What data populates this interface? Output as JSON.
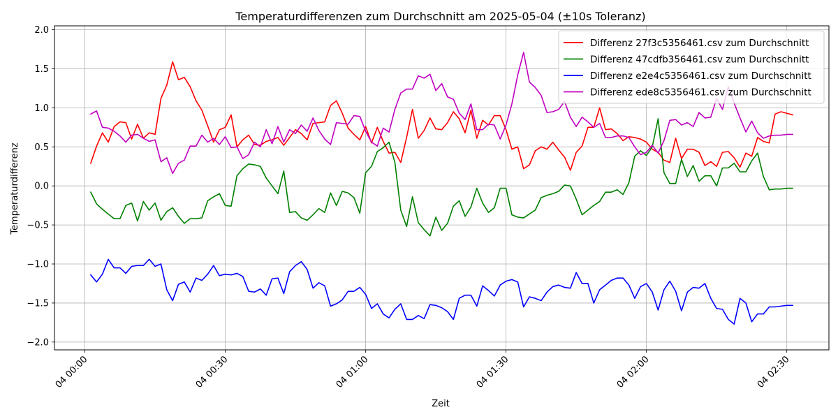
{
  "chart_data": {
    "type": "line",
    "title": "Temperaturdifferenzen zum Durchschnitt am 2025-05-04 (±10s Toleranz)",
    "xlabel": "Zeit",
    "ylabel": "Temperaturdifferenz",
    "xlim": [
      "2025-05-03T23:53:30",
      "2025-05-04T02:39:00"
    ],
    "ylim": [
      -2.1,
      2.05
    ],
    "yticks": [
      -2.0,
      -1.5,
      -1.0,
      -0.5,
      0.0,
      0.5,
      1.0,
      1.5,
      2.0
    ],
    "ytick_labels": [
      "−2.0",
      "−1.5",
      "−1.0",
      "−0.5",
      "0.0",
      "0.5",
      "1.0",
      "1.5",
      "2.0"
    ],
    "xticks": [
      "2025-05-04T00:00:00",
      "2025-05-04T00:30:00",
      "2025-05-04T01:00:00",
      "2025-05-04T01:30:00",
      "2025-05-04T02:00:00",
      "2025-05-04T02:30:00"
    ],
    "xtick_labels": [
      "04 00:00",
      "04 00:30",
      "04 01:00",
      "04 01:30",
      "04 02:00",
      "04 02:30"
    ],
    "grid": true,
    "legend_position": "top-right",
    "x_start": "2025-05-04T00:01:15",
    "x_end": "2025-05-04T02:31:15",
    "series": [
      {
        "name": "Differenz 27f3c5356461.csv zum Durchschnitt",
        "color": "#ff0000",
        "values": [
          0.29,
          0.51,
          0.68,
          0.56,
          0.76,
          0.82,
          0.81,
          0.6,
          0.79,
          0.61,
          0.68,
          0.66,
          1.12,
          1.29,
          1.59,
          1.36,
          1.39,
          1.27,
          1.09,
          0.97,
          0.77,
          0.56,
          0.72,
          0.75,
          0.91,
          0.5,
          0.59,
          0.65,
          0.53,
          0.52,
          0.57,
          0.59,
          0.62,
          0.52,
          0.62,
          0.72,
          0.67,
          0.59,
          0.8,
          0.81,
          0.82,
          1.03,
          1.09,
          0.93,
          0.74,
          0.66,
          0.59,
          0.76,
          0.55,
          0.75,
          0.57,
          0.42,
          0.43,
          0.3,
          0.62,
          0.98,
          0.61,
          0.71,
          0.87,
          0.73,
          0.72,
          0.81,
          0.95,
          0.86,
          0.68,
          0.97,
          0.61,
          0.84,
          0.78,
          0.9,
          0.9,
          0.72,
          0.47,
          0.5,
          0.22,
          0.27,
          0.45,
          0.5,
          0.47,
          0.56,
          0.46,
          0.37,
          0.2,
          0.43,
          0.51,
          0.75,
          0.75,
          1.0,
          0.72,
          0.73,
          0.67,
          0.58,
          0.63,
          0.62,
          0.6,
          0.56,
          0.47,
          0.43,
          0.33,
          0.3,
          0.61,
          0.35,
          0.47,
          0.47,
          0.43,
          0.26,
          0.31,
          0.25,
          0.43,
          0.44,
          0.36,
          0.24,
          0.42,
          0.38,
          0.62,
          0.57,
          0.55,
          0.92,
          0.95,
          0.93,
          0.91
        ]
      },
      {
        "name": "Differenz 47cdfb356461.csv zum Durchschnitt",
        "color": "#008000",
        "values": [
          -0.08,
          -0.23,
          -0.3,
          -0.36,
          -0.42,
          -0.42,
          -0.25,
          -0.22,
          -0.45,
          -0.2,
          -0.31,
          -0.22,
          -0.44,
          -0.33,
          -0.28,
          -0.39,
          -0.48,
          -0.42,
          -0.42,
          -0.41,
          -0.19,
          -0.14,
          -0.1,
          -0.25,
          -0.26,
          0.13,
          0.22,
          0.28,
          0.27,
          0.25,
          0.1,
          0.0,
          -0.1,
          0.19,
          -0.34,
          -0.33,
          -0.41,
          -0.44,
          -0.37,
          -0.29,
          -0.34,
          -0.09,
          -0.25,
          -0.07,
          -0.09,
          -0.15,
          -0.35,
          0.17,
          0.25,
          0.44,
          0.49,
          0.56,
          0.3,
          -0.31,
          -0.52,
          -0.14,
          -0.47,
          -0.56,
          -0.64,
          -0.4,
          -0.57,
          -0.48,
          -0.26,
          -0.19,
          -0.39,
          -0.27,
          -0.03,
          -0.22,
          -0.34,
          -0.28,
          -0.03,
          -0.03,
          -0.37,
          -0.4,
          -0.41,
          -0.36,
          -0.31,
          -0.15,
          -0.12,
          -0.1,
          -0.07,
          0.01,
          0.0,
          -0.17,
          -0.37,
          -0.31,
          -0.25,
          -0.2,
          -0.08,
          -0.08,
          -0.05,
          -0.11,
          0.04,
          0.38,
          0.45,
          0.39,
          0.5,
          0.86,
          0.17,
          0.03,
          0.03,
          0.34,
          0.12,
          0.26,
          0.06,
          0.13,
          0.13,
          0.0,
          0.23,
          0.23,
          0.29,
          0.18,
          0.18,
          0.32,
          0.42,
          0.12,
          -0.05,
          -0.04,
          -0.04,
          -0.03,
          -0.03
        ]
      },
      {
        "name": "Differenz e2e4c5356461.csv zum Durchschnitt",
        "color": "#0000ff",
        "values": [
          -1.14,
          -1.23,
          -1.13,
          -0.94,
          -1.05,
          -1.05,
          -1.12,
          -1.03,
          -1.02,
          -1.02,
          -0.94,
          -1.03,
          -1.0,
          -1.33,
          -1.47,
          -1.26,
          -1.23,
          -1.36,
          -1.18,
          -1.21,
          -1.13,
          -1.02,
          -1.15,
          -1.13,
          -1.14,
          -1.12,
          -1.16,
          -1.35,
          -1.36,
          -1.32,
          -1.4,
          -1.19,
          -1.18,
          -1.38,
          -1.1,
          -1.02,
          -0.97,
          -1.07,
          -1.31,
          -1.24,
          -1.28,
          -1.54,
          -1.51,
          -1.46,
          -1.35,
          -1.35,
          -1.3,
          -1.39,
          -1.57,
          -1.51,
          -1.64,
          -1.69,
          -1.58,
          -1.51,
          -1.71,
          -1.71,
          -1.66,
          -1.7,
          -1.52,
          -1.53,
          -1.56,
          -1.61,
          -1.71,
          -1.44,
          -1.4,
          -1.4,
          -1.54,
          -1.28,
          -1.34,
          -1.41,
          -1.27,
          -1.22,
          -1.2,
          -1.23,
          -1.55,
          -1.42,
          -1.44,
          -1.47,
          -1.36,
          -1.29,
          -1.27,
          -1.3,
          -1.31,
          -1.11,
          -1.25,
          -1.25,
          -1.5,
          -1.33,
          -1.27,
          -1.21,
          -1.18,
          -1.18,
          -1.27,
          -1.44,
          -1.29,
          -1.25,
          -1.36,
          -1.59,
          -1.33,
          -1.22,
          -1.35,
          -1.6,
          -1.36,
          -1.3,
          -1.31,
          -1.25,
          -1.44,
          -1.57,
          -1.58,
          -1.71,
          -1.77,
          -1.44,
          -1.5,
          -1.74,
          -1.64,
          -1.64,
          -1.55,
          -1.55,
          -1.54,
          -1.53,
          -1.53
        ]
      },
      {
        "name": "Differenz ede8c5356461.csv zum Durchschnitt",
        "color": "#c000c0",
        "values": [
          0.92,
          0.96,
          0.75,
          0.74,
          0.7,
          0.64,
          0.56,
          0.65,
          0.66,
          0.61,
          0.57,
          0.59,
          0.31,
          0.36,
          0.16,
          0.29,
          0.33,
          0.51,
          0.51,
          0.65,
          0.56,
          0.61,
          0.53,
          0.63,
          0.49,
          0.5,
          0.35,
          0.4,
          0.56,
          0.5,
          0.72,
          0.54,
          0.76,
          0.56,
          0.72,
          0.67,
          0.78,
          0.7,
          0.87,
          0.71,
          0.6,
          0.53,
          0.81,
          0.8,
          0.79,
          0.9,
          0.89,
          0.7,
          0.56,
          0.51,
          0.74,
          0.69,
          0.98,
          1.19,
          1.24,
          1.24,
          1.41,
          1.38,
          1.43,
          1.22,
          1.31,
          1.14,
          1.11,
          0.93,
          0.85,
          1.05,
          0.72,
          0.72,
          0.79,
          0.78,
          0.6,
          0.78,
          1.05,
          1.42,
          1.71,
          1.33,
          1.26,
          1.16,
          0.94,
          0.95,
          0.98,
          1.08,
          0.88,
          0.76,
          0.88,
          0.82,
          0.75,
          0.8,
          0.62,
          0.62,
          0.64,
          0.64,
          0.62,
          0.5,
          0.4,
          0.43,
          0.52,
          0.42,
          0.58,
          0.84,
          0.85,
          0.78,
          0.81,
          0.76,
          0.94,
          0.87,
          0.88,
          1.12,
          0.98,
          1.27,
          1.06,
          0.87,
          0.69,
          0.83,
          0.68,
          0.61,
          0.64,
          0.65,
          0.65,
          0.66,
          0.66
        ]
      }
    ]
  }
}
